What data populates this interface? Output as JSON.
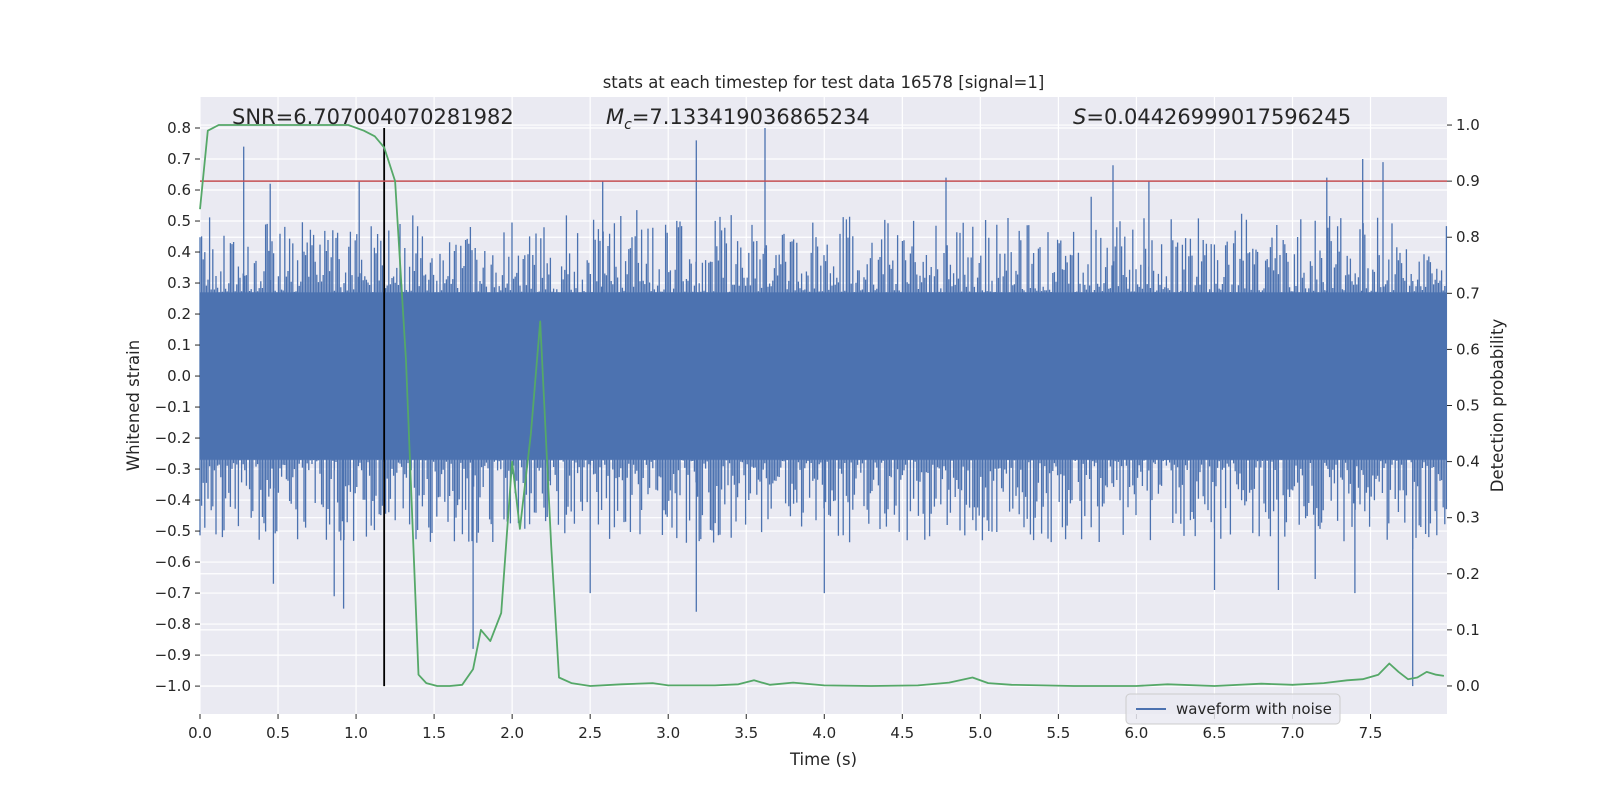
{
  "chart_data": {
    "type": "line",
    "title": "stats at each timestep for test data 16578 [signal=1]",
    "xlabel": "Time (s)",
    "ylabel_left": "Whitened strain",
    "ylabel_right": "Detection probability",
    "xlim": [
      0,
      7.99
    ],
    "ylim_left": [
      -1.09,
      0.9
    ],
    "ylim_right": [
      -0.05,
      1.05
    ],
    "x_ticks": [
      0.0,
      0.5,
      1.0,
      1.5,
      2.0,
      2.5,
      3.0,
      3.5,
      4.0,
      4.5,
      5.0,
      5.5,
      6.0,
      6.5,
      7.0,
      7.5
    ],
    "x_tick_labels": [
      "0.0",
      "0.5",
      "1.0",
      "1.5",
      "2.0",
      "2.5",
      "3.0",
      "3.5",
      "4.0",
      "4.5",
      "5.0",
      "5.5",
      "6.0",
      "6.5",
      "7.0",
      "7.5"
    ],
    "y_left_ticks": [
      0.8,
      0.7,
      0.6,
      0.5,
      0.4,
      0.3,
      0.2,
      0.1,
      0.0,
      -0.1,
      -0.2,
      -0.3,
      -0.4,
      -0.5,
      -0.6,
      -0.7,
      -0.8,
      -0.9,
      -1.0
    ],
    "y_left_tick_labels": [
      "0.8",
      "0.7",
      "0.6",
      "0.5",
      "0.4",
      "0.3",
      "0.2",
      "0.1",
      "0.0",
      "−0.1",
      "−0.2",
      "−0.3",
      "−0.4",
      "−0.5",
      "−0.6",
      "−0.7",
      "−0.8",
      "−0.9",
      "−1.0"
    ],
    "y_right_ticks": [
      1.0,
      0.9,
      0.8,
      0.7,
      0.6,
      0.5,
      0.4,
      0.3,
      0.2,
      0.1,
      0.0
    ],
    "y_right_tick_labels": [
      "1.0",
      "0.9",
      "0.8",
      "0.7",
      "0.6",
      "0.5",
      "0.4",
      "0.3",
      "0.2",
      "0.1",
      "0.0"
    ],
    "annotations": {
      "snr": "SNR=6.707004070281982",
      "mc_symbol": "M",
      "mc_sub": "c",
      "mc_value": "=7.133419036865234",
      "s_symbol": "S",
      "s_value": "=0.04426999017596245"
    },
    "threshold_line": {
      "axis": "right",
      "y": 0.9,
      "color": "#c44e52"
    },
    "event_marker": {
      "x": 1.18,
      "y_from": -1.0,
      "y_to": 0.8,
      "color": "#000000"
    },
    "series": [
      {
        "name": "waveform with noise",
        "axis": "left",
        "color": "#4c72b0",
        "kind": "noise",
        "band_core": [
          -0.27,
          0.27
        ],
        "envelope_typical": 0.42,
        "peaks_up": [
          [
            0.28,
            0.74
          ],
          [
            0.45,
            0.62
          ],
          [
            1.02,
            0.63
          ],
          [
            2.58,
            0.63
          ],
          [
            3.18,
            0.76
          ],
          [
            3.62,
            0.8
          ],
          [
            4.78,
            0.64
          ],
          [
            5.85,
            0.68
          ],
          [
            6.08,
            0.63
          ],
          [
            7.22,
            0.64
          ],
          [
            7.45,
            0.7
          ],
          [
            7.58,
            0.69
          ]
        ],
        "peaks_down": [
          [
            0.47,
            -0.67
          ],
          [
            0.86,
            -0.71
          ],
          [
            0.92,
            -0.75
          ],
          [
            1.75,
            -0.88
          ],
          [
            2.5,
            -0.7
          ],
          [
            3.18,
            -0.76
          ],
          [
            4.0,
            -0.7
          ],
          [
            6.5,
            -0.69
          ],
          [
            6.91,
            -0.69
          ],
          [
            7.4,
            -0.7
          ],
          [
            7.77,
            -1.0
          ]
        ]
      },
      {
        "name": "detection probability",
        "axis": "right",
        "color": "#55a868",
        "x": [
          0.0,
          0.05,
          0.12,
          0.25,
          0.5,
          0.8,
          0.95,
          1.05,
          1.12,
          1.18,
          1.25,
          1.32,
          1.4,
          1.45,
          1.52,
          1.6,
          1.68,
          1.75,
          1.8,
          1.86,
          1.93,
          2.0,
          2.05,
          2.12,
          2.18,
          2.25,
          2.3,
          2.38,
          2.5,
          2.7,
          2.9,
          3.0,
          3.3,
          3.45,
          3.55,
          3.65,
          3.8,
          4.0,
          4.3,
          4.6,
          4.8,
          4.95,
          5.05,
          5.2,
          5.4,
          5.6,
          6.0,
          6.2,
          6.5,
          6.8,
          7.0,
          7.2,
          7.35,
          7.45,
          7.55,
          7.62,
          7.68,
          7.74,
          7.8,
          7.86,
          7.92,
          7.97
        ],
        "y": [
          0.85,
          0.99,
          1.0,
          1.0,
          1.0,
          1.0,
          1.0,
          0.99,
          0.98,
          0.96,
          0.9,
          0.58,
          0.02,
          0.005,
          0.0,
          0.0,
          0.002,
          0.03,
          0.1,
          0.08,
          0.13,
          0.4,
          0.28,
          0.45,
          0.65,
          0.25,
          0.015,
          0.005,
          0.0,
          0.003,
          0.005,
          0.001,
          0.001,
          0.003,
          0.01,
          0.002,
          0.006,
          0.001,
          0.0,
          0.001,
          0.006,
          0.015,
          0.005,
          0.002,
          0.001,
          0.0,
          0.0,
          0.003,
          0.0,
          0.004,
          0.002,
          0.005,
          0.01,
          0.012,
          0.02,
          0.04,
          0.025,
          0.012,
          0.015,
          0.025,
          0.02,
          0.018
        ]
      }
    ],
    "legend": {
      "location": "lower-right",
      "entries": [
        "waveform with noise"
      ]
    },
    "grid": true
  }
}
